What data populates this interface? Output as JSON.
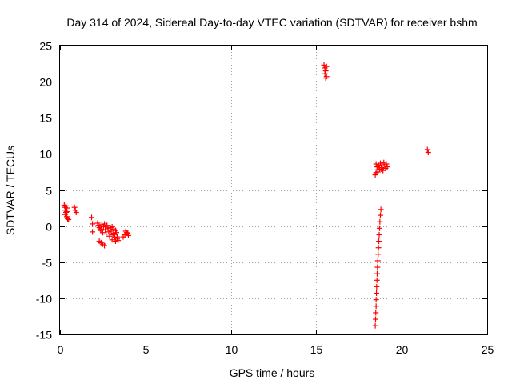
{
  "chart_data": {
    "type": "scatter",
    "title": "Day 314 of 2024, Sidereal Day-to-day VTEC variation (SDTVAR) for receiver bshm",
    "xlabel": "GPS time / hours",
    "ylabel": "SDTVAR / TECUs",
    "xlim": [
      0,
      25
    ],
    "ylim": [
      -15,
      25
    ],
    "xticks": [
      0,
      5,
      10,
      15,
      20,
      25
    ],
    "yticks": [
      -15,
      -10,
      -5,
      0,
      5,
      10,
      15,
      20,
      25
    ],
    "grid": true,
    "marker": "plus",
    "color": "#ff0000",
    "series": [
      {
        "name": "SDTVAR",
        "points": [
          [
            0.25,
            2.9
          ],
          [
            0.3,
            2.6
          ],
          [
            0.35,
            2.8
          ],
          [
            0.4,
            2.5
          ],
          [
            0.3,
            2.2
          ],
          [
            0.35,
            1.9
          ],
          [
            0.3,
            1.6
          ],
          [
            0.4,
            1.3
          ],
          [
            0.45,
            1.0
          ],
          [
            0.5,
            0.9
          ],
          [
            0.4,
            2.0
          ],
          [
            0.85,
            2.6
          ],
          [
            0.9,
            2.2
          ],
          [
            0.95,
            1.9
          ],
          [
            1.85,
            1.2
          ],
          [
            1.9,
            0.3
          ],
          [
            1.9,
            -0.8
          ],
          [
            2.2,
            0.4
          ],
          [
            2.25,
            0.1
          ],
          [
            2.3,
            -0.2
          ],
          [
            2.35,
            -0.4
          ],
          [
            2.4,
            -0.6
          ],
          [
            2.45,
            0.2
          ],
          [
            2.5,
            -0.9
          ],
          [
            2.55,
            -0.1
          ],
          [
            2.6,
            0.3
          ],
          [
            2.65,
            -0.5
          ],
          [
            2.7,
            -1.1
          ],
          [
            2.75,
            0.1
          ],
          [
            2.8,
            -0.3
          ],
          [
            2.85,
            -0.8
          ],
          [
            2.9,
            -1.4
          ],
          [
            2.95,
            -0.2
          ],
          [
            3.0,
            -0.7
          ],
          [
            3.05,
            -1.9
          ],
          [
            3.1,
            -1.2
          ],
          [
            3.15,
            -0.4
          ],
          [
            3.2,
            -1.6
          ],
          [
            3.25,
            -2.1
          ],
          [
            3.3,
            -0.9
          ],
          [
            3.35,
            -1.5
          ],
          [
            3.4,
            -2.0
          ],
          [
            3.05,
            -0.1
          ],
          [
            3.15,
            -1.0
          ],
          [
            3.25,
            -0.6
          ],
          [
            3.35,
            -1.8
          ],
          [
            2.3,
            -2.1
          ],
          [
            2.4,
            -2.3
          ],
          [
            2.5,
            -2.5
          ],
          [
            2.6,
            -2.7
          ],
          [
            3.7,
            -1.5
          ],
          [
            3.8,
            -1.2
          ],
          [
            3.9,
            -0.9
          ],
          [
            4.0,
            -1.3
          ],
          [
            3.85,
            -0.7
          ],
          [
            3.95,
            -1.0
          ],
          [
            15.45,
            22.3
          ],
          [
            15.5,
            21.9
          ],
          [
            15.55,
            21.5
          ],
          [
            15.5,
            21.1
          ],
          [
            15.6,
            20.7
          ],
          [
            15.55,
            20.5
          ],
          [
            15.6,
            22.1
          ],
          [
            18.5,
            8.6
          ],
          [
            18.55,
            8.2
          ],
          [
            18.6,
            7.8
          ],
          [
            18.5,
            7.4
          ],
          [
            18.45,
            7.1
          ],
          [
            18.65,
            8.4
          ],
          [
            18.7,
            7.9
          ],
          [
            18.75,
            8.7
          ],
          [
            18.8,
            8.1
          ],
          [
            18.85,
            8.5
          ],
          [
            18.9,
            7.7
          ],
          [
            18.95,
            8.8
          ],
          [
            19.0,
            8.3
          ],
          [
            19.05,
            8.0
          ],
          [
            19.1,
            8.6
          ],
          [
            19.15,
            8.2
          ],
          [
            18.6,
            7.5
          ],
          [
            18.8,
            7.9
          ],
          [
            18.45,
            -13.8
          ],
          [
            18.47,
            -12.9
          ],
          [
            18.48,
            -12.0
          ],
          [
            18.5,
            -11.1
          ],
          [
            18.5,
            -10.2
          ],
          [
            18.52,
            -9.3
          ],
          [
            18.53,
            -8.4
          ],
          [
            18.55,
            -7.5
          ],
          [
            18.56,
            -6.6
          ],
          [
            18.58,
            -5.7
          ],
          [
            18.6,
            -4.8
          ],
          [
            18.62,
            -3.9
          ],
          [
            18.64,
            -3.0
          ],
          [
            18.66,
            -2.1
          ],
          [
            18.68,
            -1.2
          ],
          [
            18.7,
            -0.3
          ],
          [
            18.72,
            0.6
          ],
          [
            18.75,
            1.5
          ],
          [
            18.78,
            2.3
          ],
          [
            21.5,
            10.6
          ],
          [
            21.55,
            10.2
          ]
        ]
      }
    ]
  }
}
